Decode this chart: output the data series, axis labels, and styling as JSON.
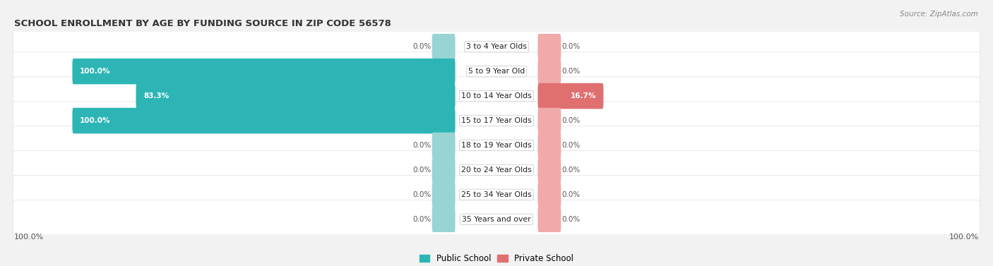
{
  "title": "SCHOOL ENROLLMENT BY AGE BY FUNDING SOURCE IN ZIP CODE 56578",
  "source": "Source: ZipAtlas.com",
  "categories": [
    "3 to 4 Year Olds",
    "5 to 9 Year Old",
    "10 to 14 Year Olds",
    "15 to 17 Year Olds",
    "18 to 19 Year Olds",
    "20 to 24 Year Olds",
    "25 to 34 Year Olds",
    "35 Years and over"
  ],
  "public_values": [
    0.0,
    100.0,
    83.3,
    100.0,
    0.0,
    0.0,
    0.0,
    0.0
  ],
  "private_values": [
    0.0,
    0.0,
    16.7,
    0.0,
    0.0,
    0.0,
    0.0,
    0.0
  ],
  "public_color": "#2db5b5",
  "private_color": "#e07070",
  "public_color_light": "#99d4d4",
  "private_color_light": "#f0aaaa",
  "bg_color": "#f2f2f2",
  "figsize": [
    14.06,
    3.77
  ]
}
